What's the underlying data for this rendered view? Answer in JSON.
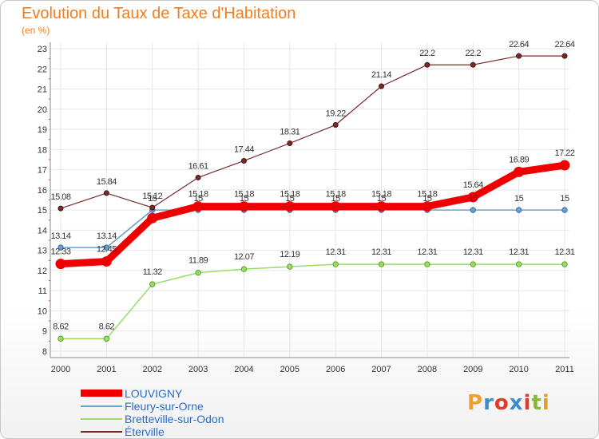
{
  "header": {
    "title": "Evolution du Taux de Taxe d'Habitation",
    "subtitle": "(en %)"
  },
  "logo": {
    "text": "Proxiti",
    "colors": [
      "#f0a030",
      "#3a8ed0",
      "#e03a2a",
      "#3a8ed0",
      "#e03a2a",
      "#8ab640",
      "#e0a030"
    ]
  },
  "chart_data": {
    "type": "line",
    "title": "Evolution du Taux de Taxe d'Habitation",
    "subtitle": "(en %)",
    "xlabel": "",
    "ylabel": "",
    "ylim": [
      8,
      23
    ],
    "grid": true,
    "legend_position": "bottom-left",
    "x": [
      "2000",
      "2001",
      "2002",
      "2003",
      "2004",
      "2005",
      "2006",
      "2007",
      "2008",
      "2009",
      "2010",
      "2011"
    ],
    "yticks": [
      "8",
      "9",
      "10",
      "11",
      "12",
      "13",
      "14",
      "15",
      "16",
      "17",
      "18",
      "19",
      "20",
      "21",
      "22",
      "23"
    ],
    "series": [
      {
        "name": "LOUVIGNY",
        "color": "#ee0000",
        "values": [
          12.33,
          12.45,
          14.6,
          15.18,
          15.18,
          15.18,
          15.18,
          15.18,
          15.18,
          15.64,
          16.89,
          17.22
        ],
        "labels": [
          "12.33",
          "12.45",
          "",
          "15.18",
          "15.18",
          "15.18",
          "15.18",
          "15.18",
          "15.18",
          "15.64",
          "16.89",
          "17.22"
        ]
      },
      {
        "name": "Fleury-sur-Orne",
        "color": "#6a9fd0",
        "values": [
          13.14,
          13.14,
          15,
          15,
          15,
          15,
          15,
          15,
          15,
          15,
          15,
          15
        ],
        "labels": [
          "13.14",
          "13.14",
          "15",
          "15",
          "15",
          "15",
          "15",
          "15",
          "15",
          "15",
          "15",
          "15"
        ]
      },
      {
        "name": "Bretteville-sur-Odon",
        "color": "#99dd66",
        "values": [
          8.62,
          8.62,
          11.32,
          11.89,
          12.07,
          12.19,
          12.31,
          12.31,
          12.31,
          12.31,
          12.31,
          12.31
        ],
        "labels": [
          "8.62",
          "8.62",
          "11.32",
          "11.89",
          "12.07",
          "12.19",
          "12.31",
          "12.31",
          "12.31",
          "12.31",
          "12.31",
          "12.31"
        ]
      },
      {
        "name": "Éterville",
        "color": "#7a2a2a",
        "values": [
          15.08,
          15.84,
          15.12,
          16.61,
          17.44,
          18.31,
          19.22,
          21.14,
          22.2,
          22.2,
          22.64,
          22.64
        ],
        "labels": [
          "15.08",
          "15.84",
          "15.12",
          "16.61",
          "17.44",
          "18.31",
          "19.22",
          "21.14",
          "22.2",
          "22.2",
          "22.64",
          "22.64"
        ]
      }
    ]
  }
}
